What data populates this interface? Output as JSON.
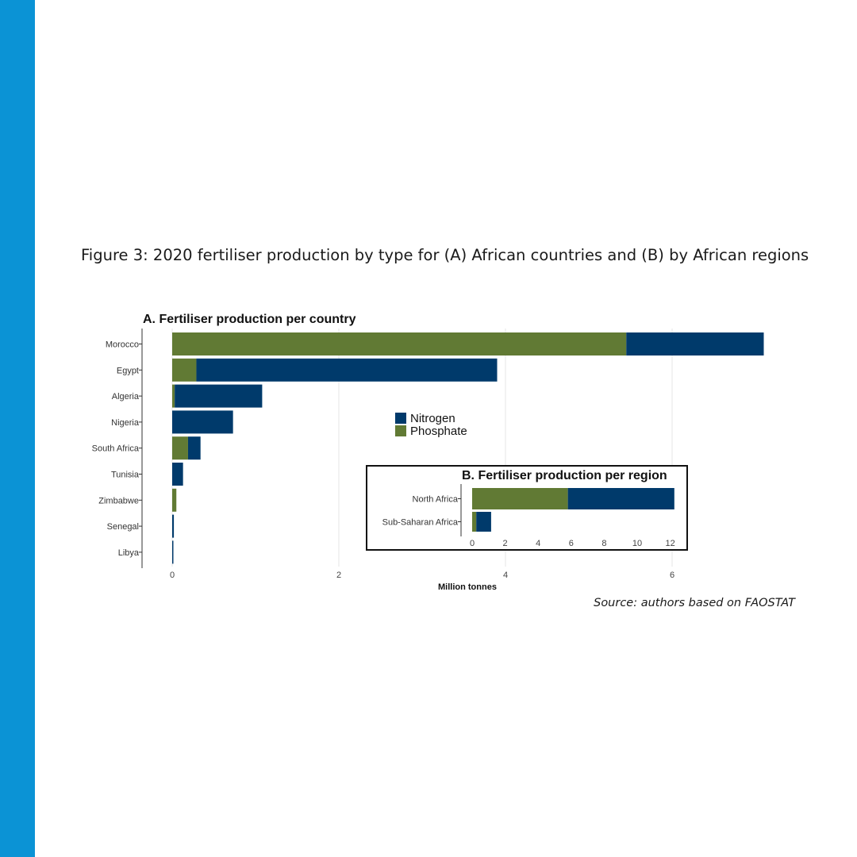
{
  "caption": "Figure 3: 2020 fertiliser production by type for (A) African countries and (B) by African regions",
  "source": "Source: authors based on FAOSTAT",
  "colors": {
    "sidebar": "#0b93d5",
    "nitrogen": "#003a6b",
    "phosphate": "#617a34"
  },
  "chart_data": [
    {
      "type": "bar",
      "orientation": "horizontal",
      "stacked": true,
      "title": "A. Fertiliser production per country",
      "xlabel": "Million tonnes",
      "ylabel": "",
      "xlim": [
        0,
        7.1
      ],
      "x_ticks": [
        "0",
        "2",
        "4",
        "6"
      ],
      "grid": true,
      "legend_position": "center",
      "categories": [
        "Morocco",
        "Egypt",
        "Algeria",
        "Nigeria",
        "South Africa",
        "Tunisia",
        "Zimbabwe",
        "Senegal",
        "Libya"
      ],
      "series": [
        {
          "name": "Phosphate",
          "values": [
            5.45,
            0.29,
            0.03,
            0.0,
            0.19,
            0.0,
            0.05,
            0.0,
            0.0
          ]
        },
        {
          "name": "Nitrogen",
          "values": [
            1.65,
            3.61,
            1.05,
            0.73,
            0.15,
            0.13,
            0.0,
            0.02,
            0.01
          ]
        }
      ]
    },
    {
      "type": "bar",
      "orientation": "horizontal",
      "stacked": true,
      "title": "B. Fertiliser production per region",
      "xlabel": "",
      "ylabel": "",
      "xlim": [
        0,
        12.6
      ],
      "x_ticks": [
        "0",
        "2",
        "4",
        "6",
        "8",
        "10",
        "12"
      ],
      "grid": false,
      "categories": [
        "North Africa",
        "Sub-Saharan Africa"
      ],
      "series": [
        {
          "name": "Phosphate",
          "values": [
            5.8,
            0.25
          ]
        },
        {
          "name": "Nitrogen",
          "values": [
            6.45,
            0.9
          ]
        }
      ]
    }
  ]
}
